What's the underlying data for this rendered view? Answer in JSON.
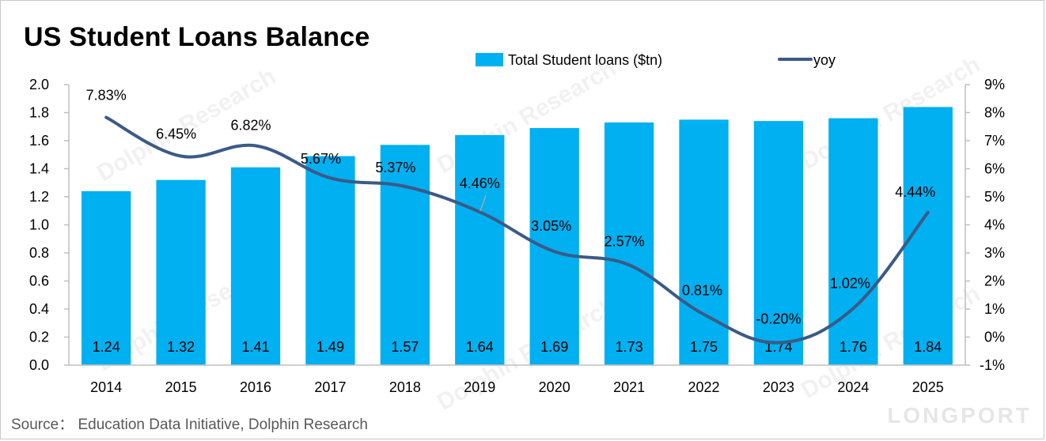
{
  "title": "US Student Loans Balance",
  "source": "Source：  Education Data Initiative, Dolphin Research",
  "watermark": {
    "text": "Dolphin Research",
    "brand": "LONGPORT"
  },
  "colors": {
    "bar": "#00b0f0",
    "line": "#3b5a87"
  },
  "chart_data": {
    "type": "bar",
    "categories": [
      "2014",
      "2015",
      "2016",
      "2017",
      "2018",
      "2019",
      "2020",
      "2021",
      "2022",
      "2023",
      "2024",
      "2025"
    ],
    "series": [
      {
        "name": "Total Student loans ($tn)",
        "type": "bar",
        "axis": "left",
        "values": [
          1.24,
          1.32,
          1.41,
          1.49,
          1.57,
          1.64,
          1.69,
          1.73,
          1.75,
          1.74,
          1.76,
          1.84
        ],
        "labels": [
          "1.24",
          "1.32",
          "1.41",
          "1.49",
          "1.57",
          "1.64",
          "1.69",
          "1.73",
          "1.75",
          "1.74",
          "1.76",
          "1.84"
        ]
      },
      {
        "name": "yoy",
        "type": "line",
        "axis": "right",
        "values": [
          7.83,
          6.45,
          6.82,
          5.67,
          5.37,
          4.46,
          3.05,
          2.57,
          0.81,
          -0.2,
          1.02,
          4.44
        ],
        "labels": [
          "7.83%",
          "6.45%",
          "6.82%",
          "5.67%",
          "5.37%",
          "4.46%",
          "3.05%",
          "2.57%",
          "0.81%",
          "-0.20%",
          "1.02%",
          "4.44%"
        ]
      }
    ],
    "y_left": {
      "min": 0,
      "max": 2.0,
      "ticks": [
        "0.0",
        "0.2",
        "0.4",
        "0.6",
        "0.8",
        "1.0",
        "1.2",
        "1.4",
        "1.6",
        "1.8",
        "2.0"
      ]
    },
    "y_right": {
      "min": -1,
      "max": 9,
      "ticks": [
        "-1%",
        "0%",
        "1%",
        "2%",
        "3%",
        "4%",
        "5%",
        "6%",
        "7%",
        "8%",
        "9%"
      ]
    },
    "legend": "top-right",
    "grid": false
  }
}
